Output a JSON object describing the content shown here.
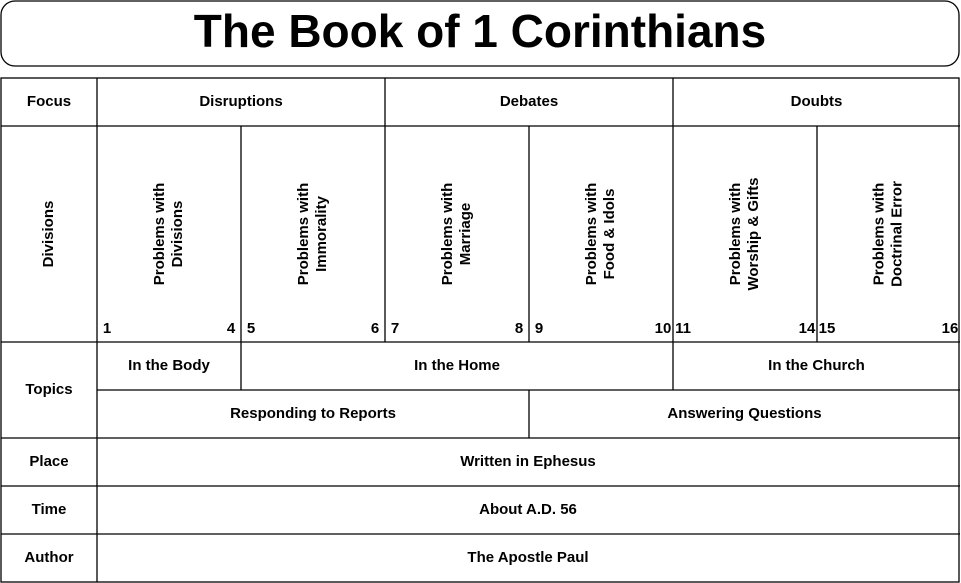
{
  "title": "The Book of 1 Corinthians",
  "rows": {
    "focus": {
      "label": "Focus",
      "items": [
        "Disruptions",
        "Debates",
        "Doubts"
      ]
    },
    "divisions": {
      "label": "Divisions",
      "items": [
        {
          "lines": [
            "Problems with",
            "Divisions"
          ],
          "start": "1",
          "end": "4"
        },
        {
          "lines": [
            "Problems with",
            "Immorality"
          ],
          "start": "5",
          "end": "6"
        },
        {
          "lines": [
            "Problems with",
            "Marriage"
          ],
          "start": "7",
          "end": "8"
        },
        {
          "lines": [
            "Problems with",
            "Food & Idols"
          ],
          "start": "9",
          "end": "10"
        },
        {
          "lines": [
            "Problems with",
            "Worship & Gifts"
          ],
          "start": "11",
          "end": "14"
        },
        {
          "lines": [
            "Problems with",
            "Doctrinal Error"
          ],
          "start": "15",
          "end": "16"
        }
      ]
    },
    "topics": {
      "label": "Topics",
      "top": [
        "In the Body",
        "In the Home",
        "In the Church"
      ],
      "bottom": [
        "Responding to Reports",
        "Answering Questions"
      ]
    },
    "place": {
      "label": "Place",
      "text": "Written in Ephesus"
    },
    "time": {
      "label": "Time",
      "text": "About A.D. 56"
    },
    "author": {
      "label": "Author",
      "text": "The Apostle Paul"
    }
  }
}
